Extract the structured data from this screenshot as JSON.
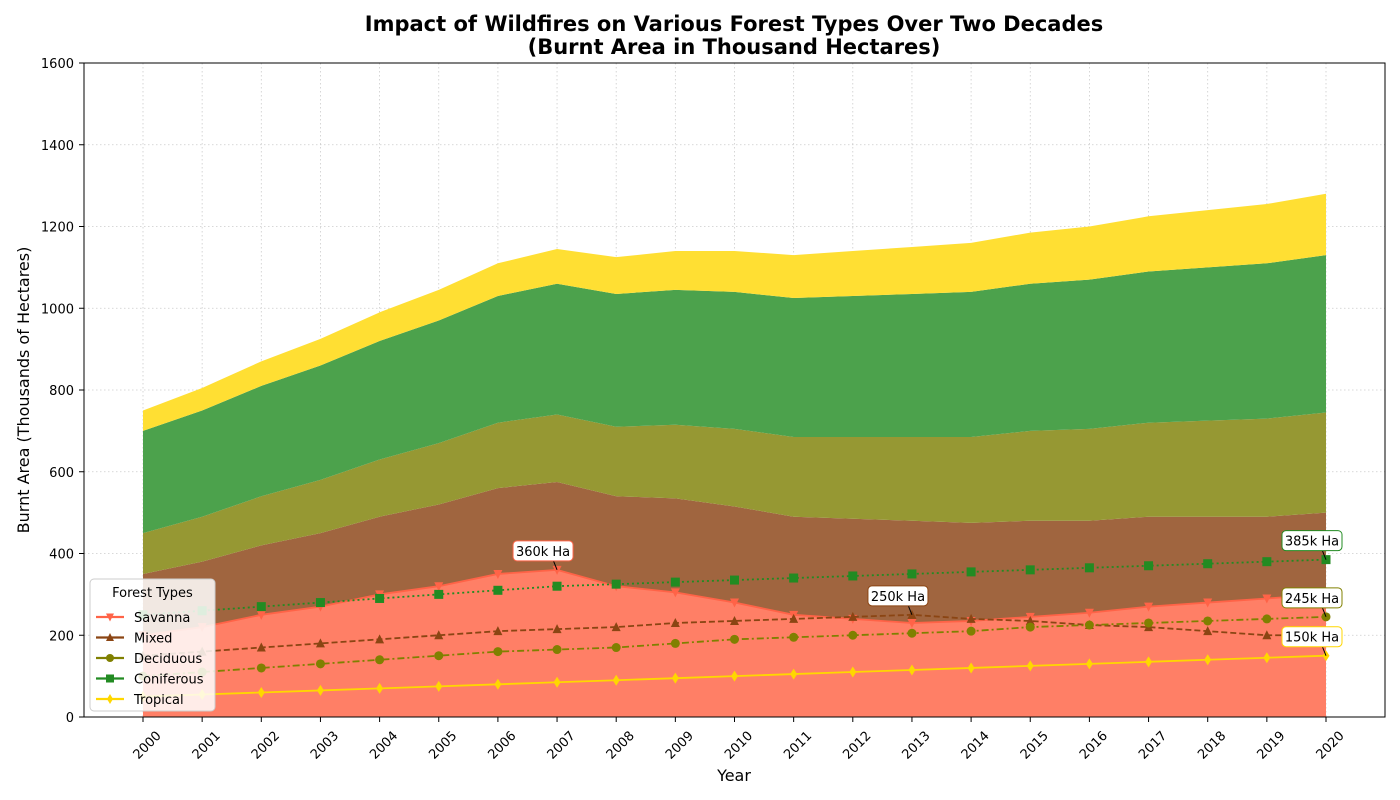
{
  "chart_data": {
    "type": "area",
    "title": "Impact of Wildfires on Various Forest Types Over Two Decades",
    "subtitle": "(Burnt Area in Thousand Hectares)",
    "xlabel": "Year",
    "ylabel": "Burnt Area (Thousands of Hectares)",
    "ylim": [
      0,
      1600
    ],
    "yticks": [
      0,
      200,
      400,
      600,
      800,
      1000,
      1200,
      1400,
      1600
    ],
    "grid": true,
    "x": [
      "2000",
      "2001",
      "2002",
      "2003",
      "2004",
      "2005",
      "2006",
      "2007",
      "2008",
      "2009",
      "2010",
      "2011",
      "2012",
      "2013",
      "2014",
      "2015",
      "2016",
      "2017",
      "2018",
      "2019",
      "2020"
    ],
    "series": [
      {
        "name": "Savanna",
        "color": "#ff6347",
        "area_color": "#ff7f66",
        "marker": "triangle-down",
        "linestyle": "solid",
        "values": [
          200,
          220,
          250,
          270,
          300,
          320,
          350,
          360,
          320,
          305,
          280,
          250,
          240,
          230,
          235,
          245,
          255,
          270,
          280,
          290,
          300
        ]
      },
      {
        "name": "Mixed",
        "color": "#8b4513",
        "area_color": "#a0653f",
        "marker": "triangle-up",
        "linestyle": "dashed",
        "values": [
          150,
          160,
          170,
          180,
          190,
          200,
          210,
          215,
          220,
          230,
          235,
          240,
          245,
          250,
          240,
          235,
          225,
          220,
          210,
          200,
          200
        ]
      },
      {
        "name": "Deciduous",
        "color": "#808000",
        "area_color": "#969833",
        "marker": "circle",
        "linestyle": "dashdot",
        "values": [
          100,
          110,
          120,
          130,
          140,
          150,
          160,
          165,
          170,
          180,
          190,
          195,
          200,
          205,
          210,
          220,
          225,
          230,
          235,
          240,
          245
        ]
      },
      {
        "name": "Coniferous",
        "color": "#228b22",
        "area_color": "#4ca24c",
        "marker": "square",
        "linestyle": "dotted",
        "values": [
          250,
          260,
          270,
          280,
          290,
          300,
          310,
          320,
          325,
          330,
          335,
          340,
          345,
          350,
          355,
          360,
          365,
          370,
          375,
          380,
          385
        ]
      },
      {
        "name": "Tropical",
        "color": "#ffd700",
        "area_color": "#ffdf33",
        "marker": "diamond",
        "linestyle": "solid",
        "values": [
          50,
          55,
          60,
          65,
          70,
          75,
          80,
          85,
          90,
          95,
          100,
          105,
          110,
          115,
          120,
          125,
          130,
          135,
          140,
          145,
          150
        ]
      }
    ],
    "legend": {
      "title": "Forest Types",
      "placement": "lower-left"
    },
    "annotations": [
      {
        "text": "360k Ha",
        "x": "2007",
        "y": 360,
        "color": "#ff6347"
      },
      {
        "text": "250k Ha",
        "x": "2013",
        "y": 250,
        "color": "#8b4513"
      },
      {
        "text": "385k Ha",
        "x": "2020",
        "y": 385,
        "color": "#228b22"
      },
      {
        "text": "245k Ha",
        "x": "2020",
        "y": 245,
        "color": "#808000"
      },
      {
        "text": "150k Ha",
        "x": "2020",
        "y": 150,
        "color": "#ffd700"
      }
    ]
  }
}
